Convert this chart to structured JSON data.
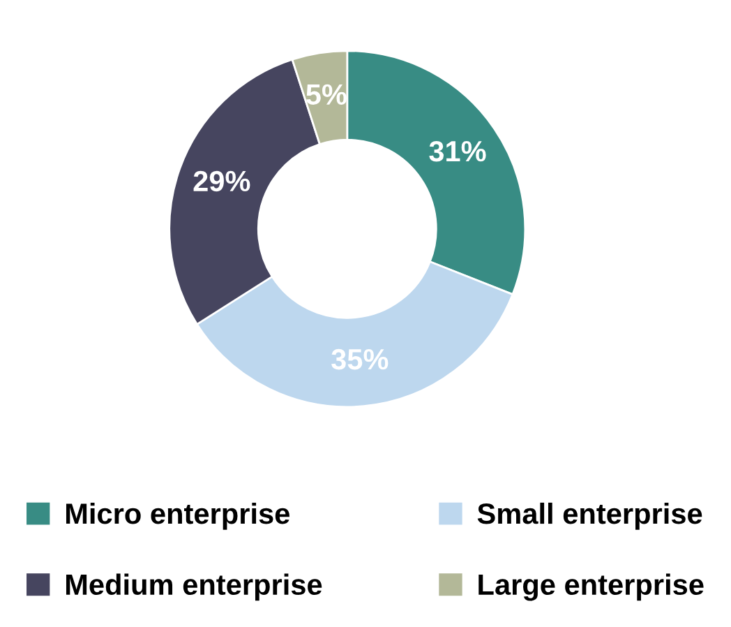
{
  "chart_data": {
    "type": "donut",
    "categories": [
      "Micro enterprise",
      "Small enterprise",
      "Medium enterprise",
      "Large enterprise"
    ],
    "values": [
      31,
      35,
      29,
      5
    ],
    "value_labels": [
      "31%",
      "35%",
      "29%",
      "5%"
    ],
    "colors": [
      "#388c84",
      "#bdd7ee",
      "#46455f",
      "#b3b898"
    ],
    "legend": "bottom"
  }
}
